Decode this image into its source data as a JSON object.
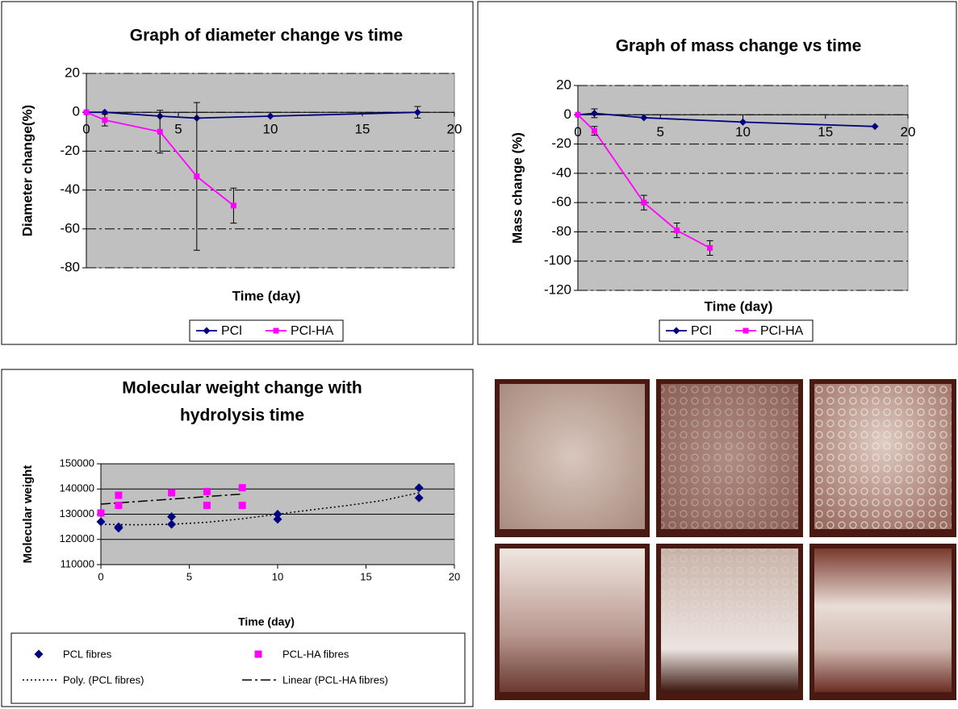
{
  "chart_data": [
    {
      "type": "line",
      "title": "Graph of diameter change vs time",
      "x_label": "Time (day)",
      "y_label": "Diameter change(%)",
      "xlim": [
        0,
        20
      ],
      "xticks": [
        0,
        5,
        10,
        15,
        20
      ],
      "ylim": [
        -80,
        20
      ],
      "yticks": [
        -80,
        -60,
        -40,
        -20,
        0,
        20
      ],
      "grid": "dashdot",
      "legend": "bottom",
      "series": [
        {
          "name": "PCl",
          "color": "#000080",
          "marker": "diamond",
          "x": [
            0,
            1,
            4,
            6,
            10,
            18
          ],
          "values": [
            0,
            0,
            -2,
            -3,
            -2,
            0
          ],
          "errors": [
            null,
            null,
            null,
            null,
            null,
            3
          ]
        },
        {
          "name": "PCl-HA",
          "color": "#ff00ff",
          "marker": "square",
          "x": [
            0,
            1,
            4,
            6,
            8
          ],
          "values": [
            0,
            -4,
            -10,
            -33,
            -48
          ],
          "errors": [
            null,
            3,
            11,
            38,
            9
          ]
        }
      ]
    },
    {
      "type": "line",
      "title": "Graph of mass change vs time",
      "x_label": "Time (day)",
      "y_label": "Mass change (%)",
      "xlim": [
        0,
        20
      ],
      "xticks": [
        0,
        5,
        10,
        15,
        20
      ],
      "ylim": [
        -120,
        20
      ],
      "yticks": [
        -120,
        -100,
        -80,
        -60,
        -40,
        -20,
        0,
        20
      ],
      "grid": "dashdot",
      "legend": "bottom",
      "series": [
        {
          "name": "PCl",
          "color": "#000080",
          "marker": "diamond",
          "x": [
            0,
            1,
            4,
            10,
            18
          ],
          "values": [
            0,
            1,
            -2,
            -5,
            -8
          ],
          "errors": [
            null,
            3,
            null,
            null,
            null
          ]
        },
        {
          "name": "PCl-HA",
          "color": "#ff00ff",
          "marker": "square",
          "x": [
            0,
            1,
            4,
            6,
            8
          ],
          "values": [
            0,
            -11,
            -60,
            -79,
            -91
          ],
          "errors": [
            null,
            3,
            5,
            5,
            5
          ]
        }
      ]
    },
    {
      "type": "scatter",
      "title": [
        "Molecular weight change with",
        "hydrolysis time"
      ],
      "x_label": "Time (day)",
      "y_label": "Molecular weight",
      "xlim": [
        0,
        20
      ],
      "xticks": [
        0,
        5,
        10,
        15,
        20
      ],
      "ylim": [
        110000,
        150000
      ],
      "yticks": [
        110000,
        120000,
        130000,
        140000,
        150000
      ],
      "grid": "solid",
      "legend": "bottom",
      "series": [
        {
          "name": "PCL fibres",
          "color": "#000080",
          "marker": "diamond",
          "x": [
            0,
            1,
            1,
            4,
            4,
            10,
            10,
            18,
            18
          ],
          "values": [
            127000,
            125000,
            124500,
            129000,
            126000,
            130000,
            128000,
            140500,
            136500
          ]
        },
        {
          "name": "PCL-HA fibres",
          "color": "#ff00ff",
          "marker": "square",
          "x": [
            0,
            1,
            1,
            4,
            6,
            6,
            8,
            8
          ],
          "values": [
            130500,
            137500,
            133500,
            138500,
            139000,
            133500,
            140500,
            133500
          ]
        }
      ],
      "trendlines": [
        {
          "name": "Poly. (PCL fibres)",
          "style": "dotted",
          "color": "#000000",
          "x": [
            0,
            2,
            4,
            6,
            8,
            10,
            12,
            14,
            16,
            18
          ],
          "values": [
            126000,
            125800,
            126000,
            126800,
            128200,
            130000,
            131800,
            133500,
            135500,
            138500
          ]
        },
        {
          "name": "Linear (PCL-HA fibres)",
          "style": "dashdot",
          "color": "#000000",
          "x": [
            0,
            8
          ],
          "values": [
            134000,
            138000
          ]
        }
      ]
    }
  ]
}
